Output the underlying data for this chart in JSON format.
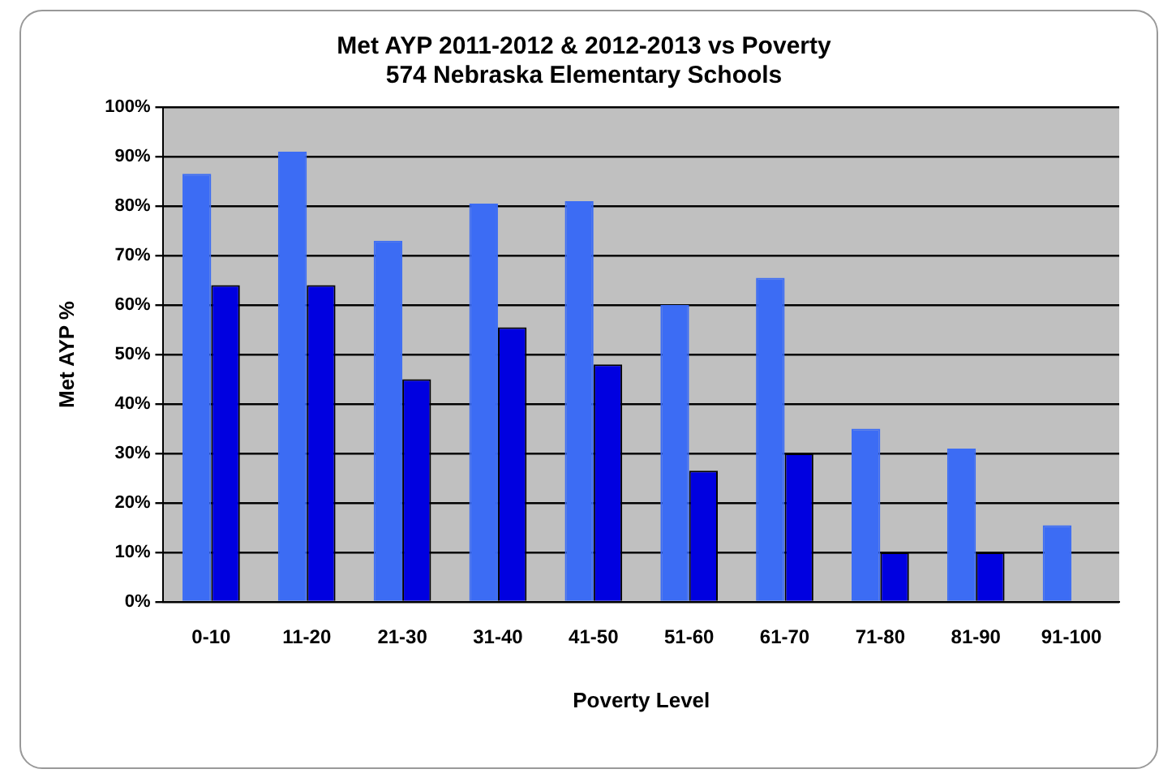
{
  "chart_data": {
    "type": "bar",
    "title": "Met AYP 2011-2012 & 2012-2013 vs Poverty",
    "subtitle": "574 Nebraska Elementary Schools",
    "xlabel": "Poverty Level",
    "ylabel": "Met AYP %",
    "categories": [
      "0-10",
      "11-20",
      "21-30",
      "31-40",
      "41-50",
      "51-60",
      "61-70",
      "71-80",
      "81-90",
      "91-100"
    ],
    "series": [
      {
        "color": "#3c6cf4",
        "values": [
          86.5,
          91,
          73,
          80.5,
          81,
          60,
          65.5,
          35,
          31,
          15.5
        ]
      },
      {
        "color": "#0000e0",
        "values": [
          64,
          64,
          45,
          55.5,
          48,
          26.5,
          30,
          10,
          10,
          null
        ]
      }
    ],
    "ylim": [
      0,
      100
    ],
    "yticks": [
      {
        "value": 0,
        "label": "0%"
      },
      {
        "value": 10,
        "label": "10%"
      },
      {
        "value": 20,
        "label": "20%"
      },
      {
        "value": 30,
        "label": "30%"
      },
      {
        "value": 40,
        "label": "40%"
      },
      {
        "value": 50,
        "label": "50%"
      },
      {
        "value": 60,
        "label": "60%"
      },
      {
        "value": 70,
        "label": "70%"
      },
      {
        "value": 80,
        "label": "80%"
      },
      {
        "value": 90,
        "label": "90%"
      },
      {
        "value": 100,
        "label": "100%"
      }
    ],
    "grid": "y",
    "legend": false
  }
}
